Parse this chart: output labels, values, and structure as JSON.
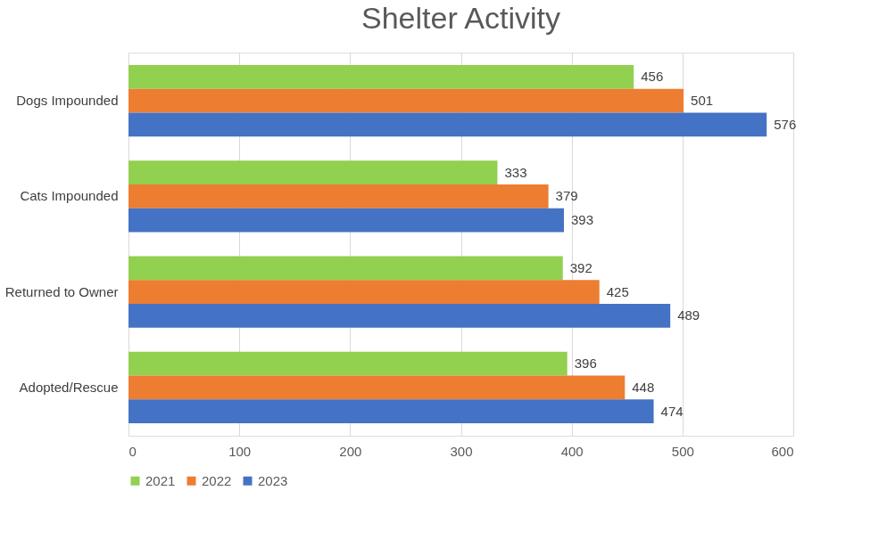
{
  "chart_data": {
    "type": "bar",
    "orientation": "horizontal",
    "title": "Shelter Activity",
    "categories": [
      "Dogs Impounded",
      "Cats Impounded",
      "Returned to Owner",
      "Adopted/Rescue"
    ],
    "series": [
      {
        "name": "2021",
        "color": "#92d050",
        "values": [
          456,
          333,
          392,
          396
        ]
      },
      {
        "name": "2022",
        "color": "#ed7d31",
        "values": [
          501,
          379,
          425,
          448
        ]
      },
      {
        "name": "2023",
        "color": "#4472c4",
        "values": [
          576,
          393,
          489,
          474
        ]
      }
    ],
    "xlim": [
      0,
      600
    ],
    "xticks": [
      0,
      100,
      200,
      300,
      400,
      500,
      600
    ],
    "grid": "x",
    "legend": "bottom",
    "data_labels": true
  }
}
